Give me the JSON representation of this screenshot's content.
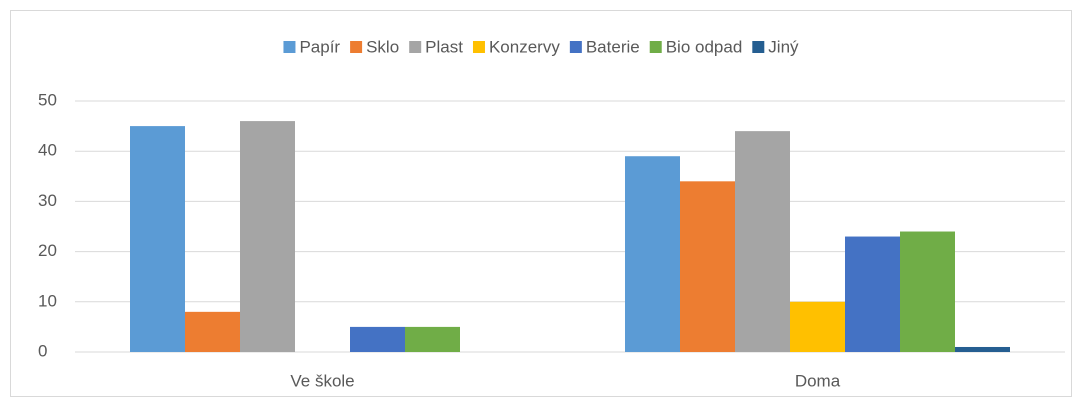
{
  "chart_data": {
    "type": "bar",
    "categories": [
      "Ve škole",
      "Doma"
    ],
    "series": [
      {
        "name": "Papír",
        "color": "#5b9bd5",
        "values": [
          45,
          39
        ]
      },
      {
        "name": "Sklo",
        "color": "#ed7d31",
        "values": [
          8,
          34
        ]
      },
      {
        "name": "Plast",
        "color": "#a5a5a5",
        "values": [
          46,
          44
        ]
      },
      {
        "name": "Konzervy",
        "color": "#ffc000",
        "values": [
          0,
          10
        ]
      },
      {
        "name": "Baterie",
        "color": "#4472c4",
        "values": [
          5,
          23
        ]
      },
      {
        "name": "Bio odpad",
        "color": "#70ad47",
        "values": [
          5,
          24
        ]
      },
      {
        "name": "Jiný",
        "color": "#255e91",
        "values": [
          0,
          1
        ]
      }
    ],
    "ylim": [
      0,
      50
    ],
    "yticks": [
      0,
      10,
      20,
      30,
      40,
      50
    ],
    "grid": true,
    "legend": "top"
  }
}
